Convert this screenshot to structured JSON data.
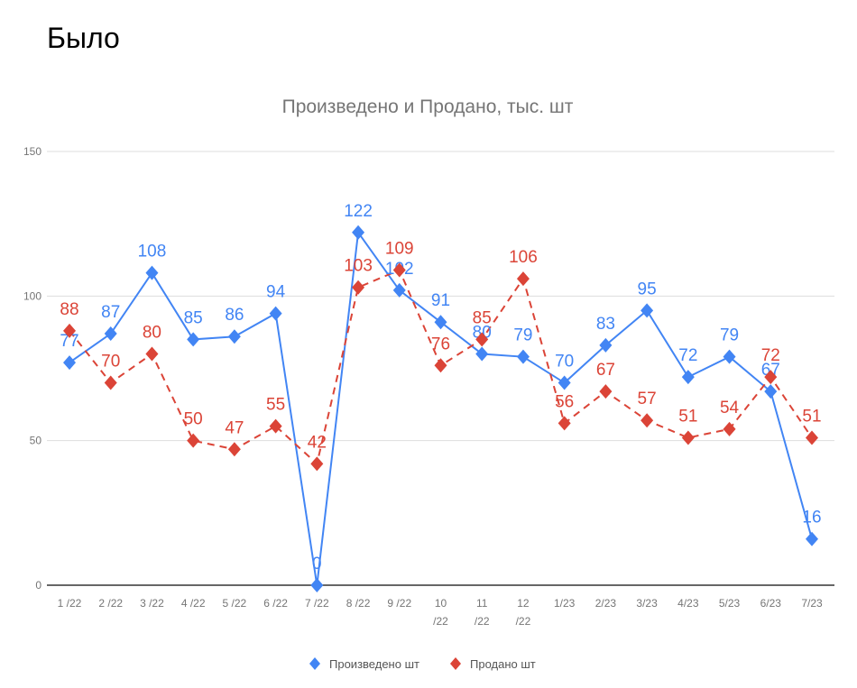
{
  "heading": "Было",
  "chart_data": {
    "type": "line",
    "title": "Произведено  и Продано, тыс. шт",
    "categories": [
      "1 /22",
      "2 /22",
      "3 /22",
      "4 /22",
      "5 /22",
      "6 /22",
      "7 /22",
      "8 /22",
      "9 /22",
      "10 /22",
      "11 /22",
      "12 /22",
      "1/23",
      "2/23",
      "3/23",
      "4/23",
      "5/23",
      "6/23",
      "7/23"
    ],
    "series": [
      {
        "name": "Произведено шт",
        "color": "#4285f4",
        "line": "solid",
        "marker": "diamond",
        "values": [
          77,
          87,
          108,
          85,
          86,
          94,
          0,
          122,
          102,
          91,
          80,
          79,
          70,
          83,
          95,
          72,
          79,
          67,
          16
        ]
      },
      {
        "name": "Продано шт",
        "color": "#db4437",
        "line": "dashed",
        "marker": "diamond",
        "values": [
          88,
          70,
          80,
          50,
          47,
          55,
          42,
          103,
          109,
          76,
          85,
          106,
          56,
          67,
          57,
          51,
          54,
          72,
          51
        ]
      }
    ],
    "yticks": [
      "0",
      "50",
      "100",
      "150"
    ],
    "ylim": [
      0,
      150
    ],
    "grid": true,
    "data_labels": true,
    "legend": "bottom"
  }
}
